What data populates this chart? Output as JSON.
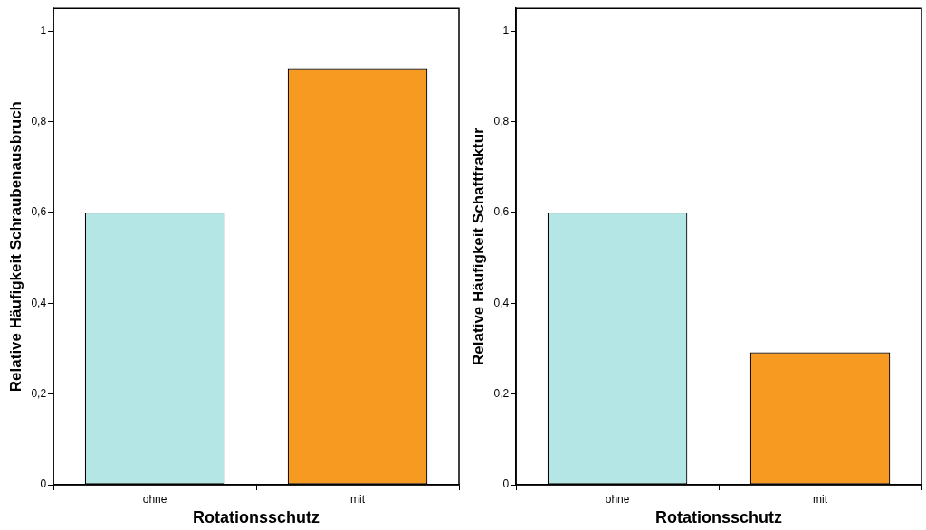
{
  "chart_data": [
    {
      "type": "bar",
      "xlabel": "Rotationsschutz",
      "ylabel": "Relative Häufigkeit Schraubenausbruch",
      "categories": [
        "ohne",
        "mit"
      ],
      "values": [
        0.6,
        0.918
      ],
      "colors": [
        "#b4e6e6",
        "#f79a21"
      ],
      "ylim": [
        0,
        1.05
      ],
      "yticks": [
        {
          "value": 0,
          "label": "0"
        },
        {
          "value": 0.2,
          "label": "0,2"
        },
        {
          "value": 0.4,
          "label": "0,4"
        },
        {
          "value": 0.6,
          "label": "0,6"
        },
        {
          "value": 0.8,
          "label": "0,8"
        },
        {
          "value": 1,
          "label": "1"
        }
      ],
      "grid": false,
      "legend": false
    },
    {
      "type": "bar",
      "xlabel": "Rotationsschutz",
      "ylabel": "Relative Häufigkeit Schaftfraktur",
      "categories": [
        "ohne",
        "mit"
      ],
      "values": [
        0.6,
        0.292
      ],
      "colors": [
        "#b4e6e6",
        "#f79a21"
      ],
      "ylim": [
        0,
        1.05
      ],
      "yticks": [
        {
          "value": 0,
          "label": "0"
        },
        {
          "value": 0.2,
          "label": "0,2"
        },
        {
          "value": 0.4,
          "label": "0,4"
        },
        {
          "value": 0.6,
          "label": "0,6"
        },
        {
          "value": 0.8,
          "label": "0,8"
        },
        {
          "value": 1,
          "label": "1"
        }
      ],
      "grid": false,
      "legend": false
    }
  ]
}
